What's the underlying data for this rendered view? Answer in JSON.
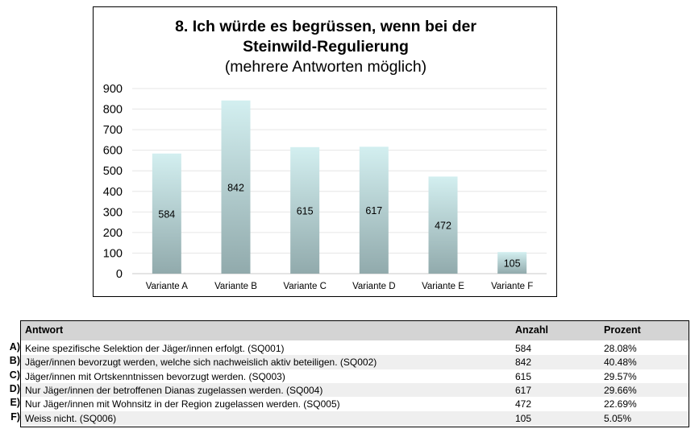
{
  "chart_data": {
    "type": "bar",
    "title": "8. Ich würde es begrüssen, wenn bei der Steinwild-Regulierung",
    "title_lines": [
      "8. Ich würde es begrüssen, wenn bei der",
      "Steinwild-Regulierung"
    ],
    "subtitle": "(mehrere Antworten möglich)",
    "categories": [
      "Variante A",
      "Variante B",
      "Variante C",
      "Variante D",
      "Variante E",
      "Variante F"
    ],
    "values": [
      584,
      842,
      615,
      617,
      472,
      105
    ],
    "data_labels": [
      "584",
      "842",
      "615",
      "617",
      "472",
      "105"
    ],
    "ylim": [
      0,
      900
    ],
    "yticks": [
      "0",
      "100",
      "200",
      "300",
      "400",
      "500",
      "600",
      "700",
      "800",
      "900"
    ],
    "grid": true,
    "legend": "none",
    "bar_gradient": {
      "top": "#d3eff0",
      "bottom": "#91aaac"
    }
  },
  "table": {
    "headers": {
      "answer": "Antwort",
      "count": "Anzahl",
      "percent": "Prozent"
    },
    "rows": [
      {
        "letter": "A)",
        "answer": "Keine spezifische Selektion der Jäger/innen erfolgt. (SQ001)",
        "count": "584",
        "percent": "28.08%"
      },
      {
        "letter": "B)",
        "answer": "Jäger/innen bevorzugt werden, welche sich nachweislich aktiv beteiligen. (SQ002)",
        "count": "842",
        "percent": "40.48%"
      },
      {
        "letter": "C)",
        "answer": "Jäger/innen mit Ortskenntnissen bevorzugt werden. (SQ003)",
        "count": "615",
        "percent": "29.57%"
      },
      {
        "letter": "D)",
        "answer": "Nur Jäger/innen der betroffenen Dianas zugelassen werden. (SQ004)",
        "count": "617",
        "percent": "29.66%"
      },
      {
        "letter": "E)",
        "answer": "Nur Jäger/innen mit Wohnsitz in der Region zugelassen werden. (SQ005)",
        "count": "472",
        "percent": "22.69%"
      },
      {
        "letter": "F)",
        "answer": "Weiss nicht. (SQ006)",
        "count": "105",
        "percent": "5.05%"
      }
    ],
    "colors": {
      "header_bg": "#d4d4d4",
      "stripe_bg": "#efefef",
      "row_bg": "#ffffff"
    }
  }
}
